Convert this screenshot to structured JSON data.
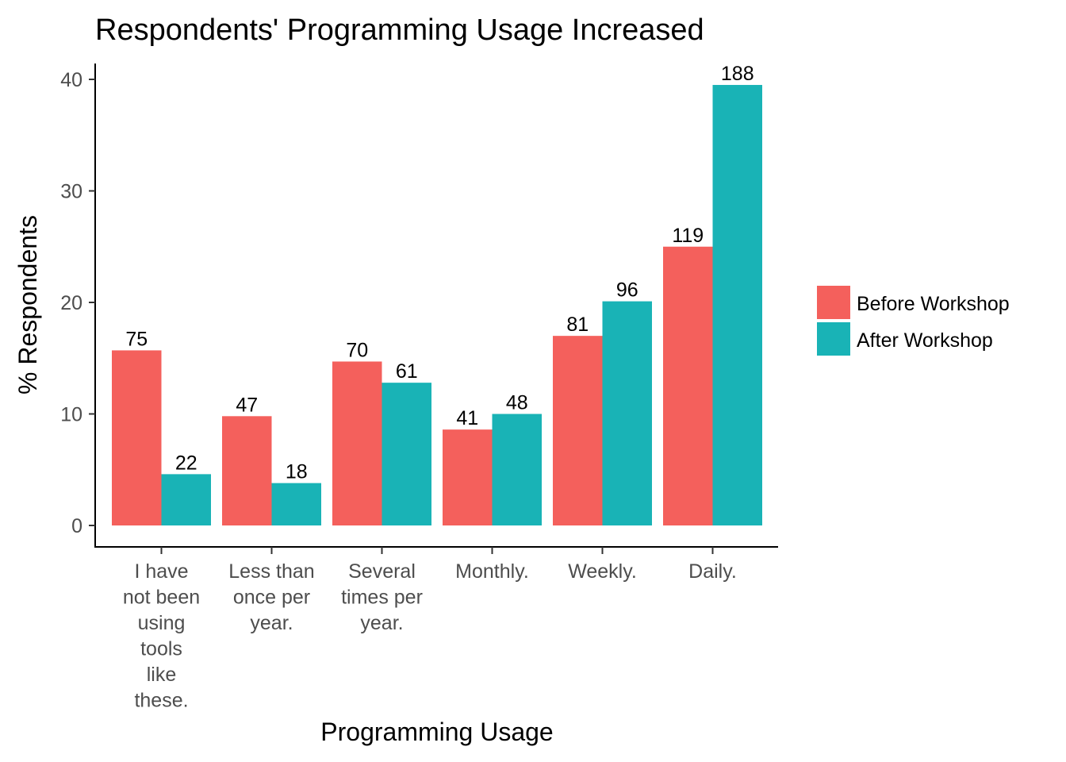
{
  "chart_data": {
    "type": "bar",
    "title": "Respondents' Programming Usage Increased",
    "xlabel": "Programming Usage",
    "ylabel": "% Respondents",
    "ylim": [
      0,
      42
    ],
    "yticks": [
      0,
      10,
      20,
      30,
      40
    ],
    "grid": false,
    "legend_position": "right",
    "categories": [
      [
        "I have",
        "not been",
        "using",
        "tools",
        "like",
        "these."
      ],
      [
        "Less than",
        "once per",
        "year."
      ],
      [
        "Several",
        "times per",
        "year."
      ],
      [
        "Monthly."
      ],
      [
        "Weekly."
      ],
      [
        "Daily."
      ]
    ],
    "series": [
      {
        "name": "Before Workshop",
        "color": "#F4605C",
        "values": [
          15.7,
          9.8,
          14.7,
          8.6,
          17.0,
          25.0
        ],
        "labels": [
          "75",
          "47",
          "70",
          "41",
          "81",
          "119"
        ]
      },
      {
        "name": "After Workshop",
        "color": "#19B3B6",
        "values": [
          4.6,
          3.8,
          12.8,
          10.0,
          20.1,
          39.5
        ],
        "labels": [
          "22",
          "18",
          "61",
          "48",
          "96",
          "188"
        ]
      }
    ]
  }
}
